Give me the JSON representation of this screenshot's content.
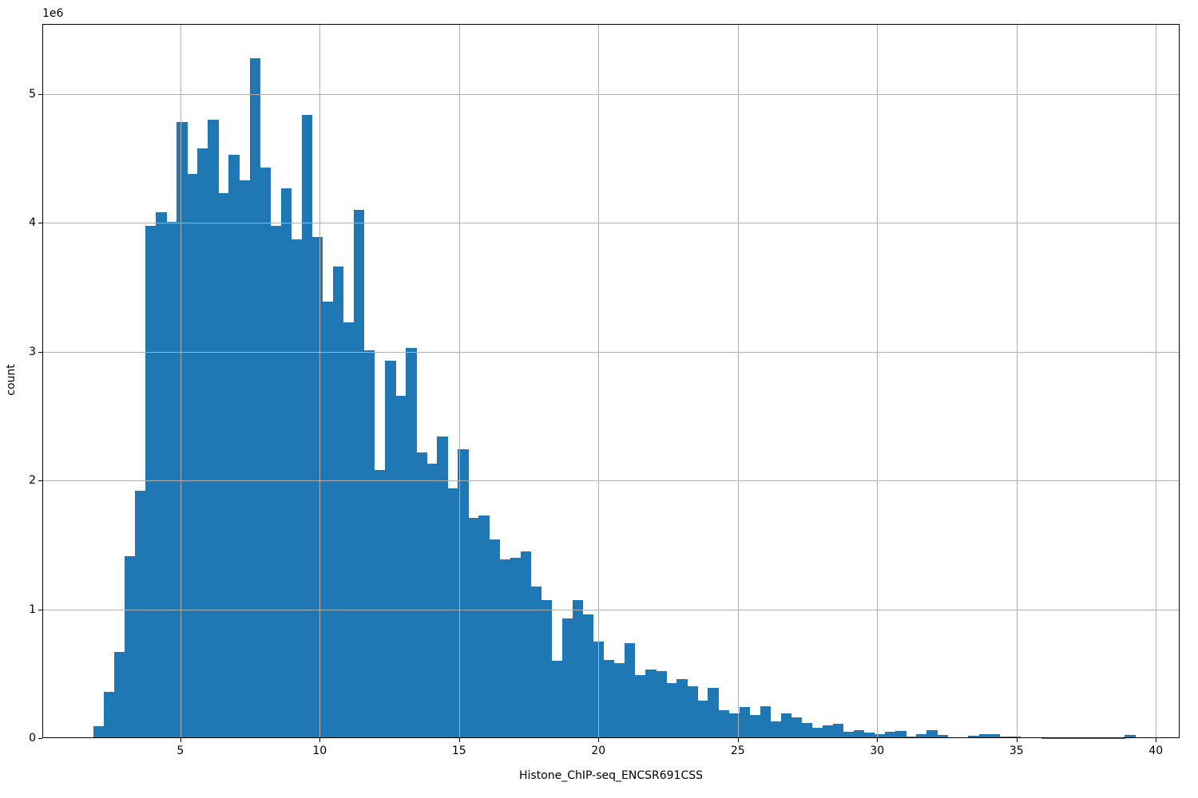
{
  "page": {
    "background": "#ffffff"
  },
  "chart_data": {
    "type": "bar",
    "subtype": "histogram",
    "title": "",
    "xlabel": "Histone_ChIP-seq_ENCSR691CSS",
    "ylabel": "count",
    "y_axis_offset_label": "1e6",
    "legend": null,
    "grid": true,
    "grid_color": "#b0b0b0",
    "bar_color": "#1f77b4",
    "spine_color": "#000000",
    "xlim": [
      0.05,
      40.85
    ],
    "ylim": [
      0,
      5545000
    ],
    "x_ticks": [
      5,
      10,
      15,
      20,
      25,
      30,
      35,
      40
    ],
    "y_ticks": [
      0,
      1000000,
      2000000,
      3000000,
      4000000,
      5000000
    ],
    "y_tick_labels": [
      "0",
      "1",
      "2",
      "3",
      "4",
      "5"
    ],
    "bin_start": 1.88,
    "bin_width": 0.3737,
    "counts": [
      90000,
      360000,
      670000,
      1410000,
      1920000,
      3980000,
      4080000,
      4010000,
      4780000,
      4380000,
      4580000,
      4800000,
      4230000,
      4530000,
      4330000,
      5280000,
      4430000,
      3980000,
      4270000,
      3870000,
      4840000,
      3890000,
      3390000,
      3660000,
      3230000,
      4100000,
      3010000,
      2080000,
      2930000,
      2660000,
      3030000,
      2220000,
      2130000,
      2340000,
      1940000,
      2240000,
      1710000,
      1730000,
      1540000,
      1390000,
      1400000,
      1450000,
      1180000,
      1070000,
      600000,
      930000,
      1070000,
      960000,
      750000,
      610000,
      580000,
      740000,
      490000,
      530000,
      520000,
      430000,
      460000,
      400000,
      290000,
      390000,
      220000,
      190000,
      240000,
      180000,
      250000,
      130000,
      190000,
      160000,
      120000,
      80000,
      100000,
      110000,
      50000,
      60000,
      46000,
      30000,
      50000,
      55000,
      15000,
      30000,
      65000,
      27000,
      5000,
      5000,
      20000,
      30000,
      28000,
      13000,
      13000,
      8000,
      6000,
      3000,
      2000,
      2000,
      2000,
      2000,
      2000,
      2000,
      2000,
      27000
    ]
  }
}
